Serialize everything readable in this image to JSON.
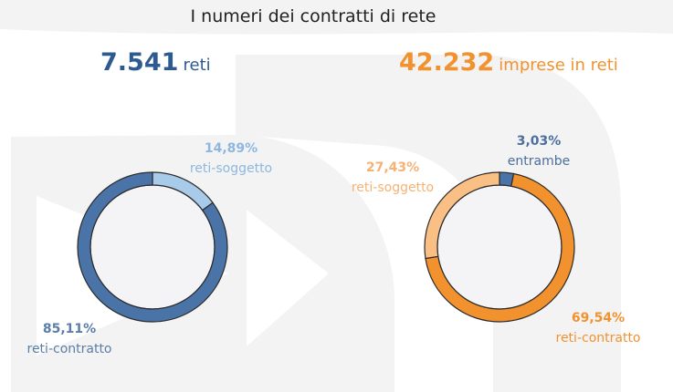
{
  "title": "I numeri dei contratti di rete",
  "kpi_left": {
    "value": "7.541",
    "unit": "reti"
  },
  "kpi_right": {
    "value": "42.232",
    "unit": "imprese in reti"
  },
  "colors": {
    "blue_dark": "#4a74a8",
    "blue_light": "#a9cbea",
    "orange": "#f2922e",
    "orange_light": "#f9bf84",
    "label_blue": "#5a7ea8",
    "label_light_blue": "#8cb8df",
    "label_orange": "#f2922e",
    "label_light_orange": "#f5b274"
  },
  "chart_data": [
    {
      "type": "pie",
      "variant": "donut",
      "categories": [
        "reti-soggetto",
        "reti-contratto"
      ],
      "values": [
        14.89,
        85.11
      ],
      "labels": [
        {
          "pct": "14,89%",
          "name": "reti-soggetto"
        },
        {
          "pct": "85,11%",
          "name": "reti-contratto"
        }
      ],
      "colors": [
        "#a9cbea",
        "#4a74a8"
      ]
    },
    {
      "type": "pie",
      "variant": "donut",
      "categories": [
        "entrambe",
        "reti-contratto",
        "reti-soggetto"
      ],
      "values": [
        3.03,
        69.54,
        27.43
      ],
      "labels": [
        {
          "pct": "3,03%",
          "name": "entrambe"
        },
        {
          "pct": "69,54%",
          "name": "reti-contratto"
        },
        {
          "pct": "27,43%",
          "name": "reti-soggetto"
        }
      ],
      "colors": [
        "#4a74a8",
        "#f2922e",
        "#f9bf84"
      ]
    }
  ]
}
